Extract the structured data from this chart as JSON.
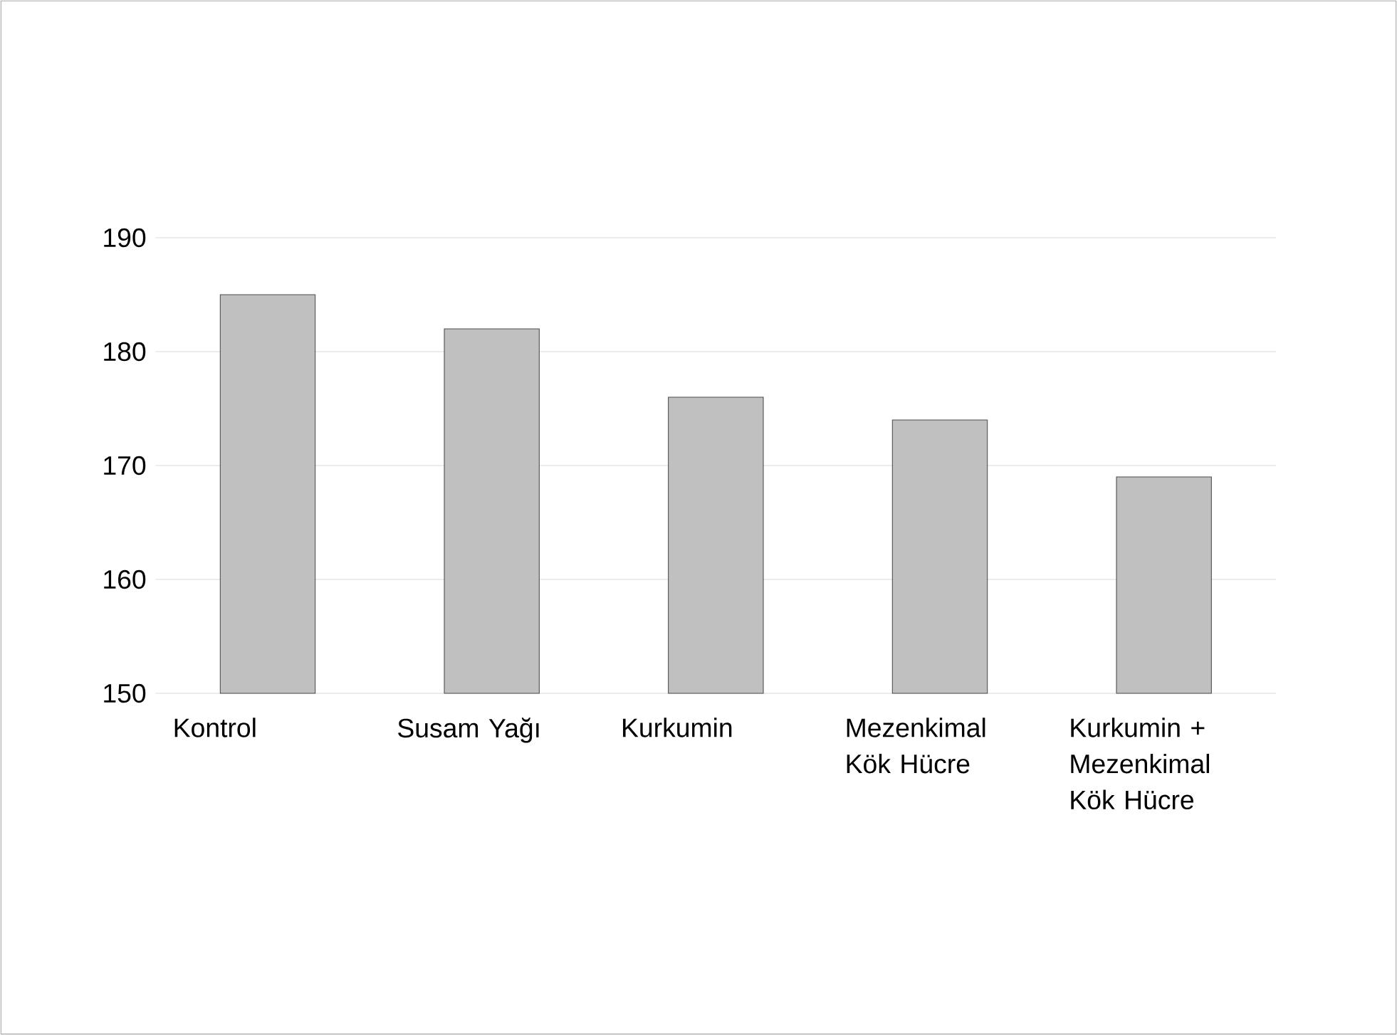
{
  "chart_data": {
    "type": "bar",
    "categories": [
      "Kontrol",
      "Susam Yağı",
      "Kurkumin",
      "Mezenkimal Kök Hücre",
      "Kurkumin + Mezenkimal Kök Hücre"
    ],
    "values": [
      185,
      182,
      176,
      174,
      169
    ],
    "color": "#c0c0c0",
    "ylim": [
      150,
      190
    ],
    "yticks": [
      150,
      160,
      170,
      180,
      190
    ],
    "grid": "y"
  }
}
